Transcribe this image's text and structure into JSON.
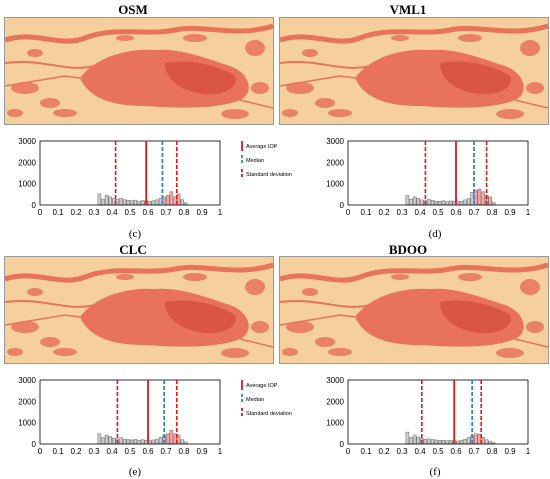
{
  "panels": [
    {
      "title": "OSM"
    },
    {
      "title": "VML1"
    },
    {
      "title": "CLC"
    },
    {
      "title": "BDOO"
    }
  ],
  "legend": {
    "average": "Average IOP",
    "median": "Median",
    "std": "Standard deviation"
  },
  "colors": {
    "land": "#f5cf9c",
    "urban": "#e8735a",
    "urban_dark": "#d4493a",
    "average_line": "#e4161b",
    "median_line": "#2e86c8",
    "std_line": "#e4161b",
    "bar_fill": "#c9c9c9",
    "bar_highlight": "#f2a7a7"
  },
  "chart_data": [
    {
      "type": "bar",
      "caption": "(c)",
      "x_ticks": [
        "0",
        "0.1",
        "0.2",
        "0.3",
        "0.4",
        "0.5",
        "0.6",
        "0.7",
        "0.8",
        "0.9",
        "1"
      ],
      "y_ticks": [
        "0",
        "1000",
        "2000",
        "3000"
      ],
      "ylim": [
        0,
        3000
      ],
      "xlim": [
        0,
        1
      ],
      "average": 0.59,
      "median": 0.68,
      "std_low": 0.42,
      "std_high": 0.76,
      "bins": [
        [
          0.33,
          520
        ],
        [
          0.35,
          280
        ],
        [
          0.37,
          450
        ],
        [
          0.39,
          380
        ],
        [
          0.41,
          300
        ],
        [
          0.43,
          260
        ],
        [
          0.45,
          320
        ],
        [
          0.47,
          250
        ],
        [
          0.49,
          220
        ],
        [
          0.51,
          200
        ],
        [
          0.53,
          230
        ],
        [
          0.55,
          180
        ],
        [
          0.57,
          210
        ],
        [
          0.59,
          190
        ],
        [
          0.61,
          170
        ],
        [
          0.63,
          200
        ],
        [
          0.65,
          240
        ],
        [
          0.67,
          320
        ],
        [
          0.69,
          380
        ],
        [
          0.71,
          450
        ],
        [
          0.73,
          620
        ],
        [
          0.75,
          380
        ],
        [
          0.77,
          520
        ],
        [
          0.79,
          250
        ],
        [
          0.81,
          110
        ]
      ]
    },
    {
      "type": "bar",
      "caption": "(d)",
      "x_ticks": [
        "0",
        "0.1",
        "0.2",
        "0.3",
        "0.4",
        "0.5",
        "0.6",
        "0.7",
        "0.8",
        "0.9",
        "1"
      ],
      "y_ticks": [
        "0",
        "1000",
        "2000",
        "3000"
      ],
      "ylim": [
        0,
        3000
      ],
      "xlim": [
        0,
        1
      ],
      "average": 0.6,
      "median": 0.7,
      "std_low": 0.43,
      "std_high": 0.77,
      "bins": [
        [
          0.33,
          450
        ],
        [
          0.35,
          280
        ],
        [
          0.37,
          380
        ],
        [
          0.39,
          320
        ],
        [
          0.41,
          240
        ],
        [
          0.43,
          200
        ],
        [
          0.45,
          260
        ],
        [
          0.47,
          220
        ],
        [
          0.49,
          180
        ],
        [
          0.51,
          170
        ],
        [
          0.53,
          200
        ],
        [
          0.55,
          160
        ],
        [
          0.57,
          190
        ],
        [
          0.59,
          170
        ],
        [
          0.61,
          160
        ],
        [
          0.63,
          180
        ],
        [
          0.65,
          240
        ],
        [
          0.67,
          300
        ],
        [
          0.69,
          600
        ],
        [
          0.71,
          700
        ],
        [
          0.73,
          750
        ],
        [
          0.75,
          620
        ],
        [
          0.77,
          450
        ],
        [
          0.79,
          380
        ],
        [
          0.81,
          120
        ]
      ]
    },
    {
      "type": "bar",
      "caption": "(e)",
      "x_ticks": [
        "0",
        "0.1",
        "0.2",
        "0.3",
        "0.4",
        "0.5",
        "0.6",
        "0.7",
        "0.8",
        "0.9",
        "1"
      ],
      "y_ticks": [
        "0",
        "1000",
        "2000",
        "3000"
      ],
      "ylim": [
        0,
        3000
      ],
      "xlim": [
        0,
        1
      ],
      "average": 0.6,
      "median": 0.69,
      "std_low": 0.43,
      "std_high": 0.76,
      "bins": [
        [
          0.33,
          480
        ],
        [
          0.35,
          300
        ],
        [
          0.37,
          420
        ],
        [
          0.39,
          350
        ],
        [
          0.41,
          280
        ],
        [
          0.43,
          240
        ],
        [
          0.45,
          300
        ],
        [
          0.47,
          230
        ],
        [
          0.49,
          210
        ],
        [
          0.51,
          190
        ],
        [
          0.53,
          220
        ],
        [
          0.55,
          170
        ],
        [
          0.57,
          200
        ],
        [
          0.59,
          180
        ],
        [
          0.61,
          160
        ],
        [
          0.63,
          190
        ],
        [
          0.65,
          230
        ],
        [
          0.67,
          310
        ],
        [
          0.69,
          400
        ],
        [
          0.71,
          480
        ],
        [
          0.73,
          650
        ],
        [
          0.75,
          480
        ],
        [
          0.77,
          420
        ],
        [
          0.79,
          200
        ],
        [
          0.81,
          100
        ]
      ]
    },
    {
      "type": "bar",
      "caption": "(f)",
      "x_ticks": [
        "0",
        "0.1",
        "0.2",
        "0.3",
        "0.4",
        "0.5",
        "0.6",
        "0.7",
        "0.8",
        "0.9",
        "1"
      ],
      "y_ticks": [
        "0",
        "1000",
        "2000",
        "3000"
      ],
      "ylim": [
        0,
        3000
      ],
      "xlim": [
        0,
        1
      ],
      "average": 0.59,
      "median": 0.69,
      "std_low": 0.41,
      "std_high": 0.74,
      "bins": [
        [
          0.33,
          560
        ],
        [
          0.35,
          320
        ],
        [
          0.37,
          420
        ],
        [
          0.39,
          330
        ],
        [
          0.41,
          260
        ],
        [
          0.43,
          220
        ],
        [
          0.45,
          240
        ],
        [
          0.47,
          210
        ],
        [
          0.49,
          190
        ],
        [
          0.51,
          170
        ],
        [
          0.53,
          180
        ],
        [
          0.55,
          160
        ],
        [
          0.57,
          170
        ],
        [
          0.59,
          150
        ],
        [
          0.61,
          140
        ],
        [
          0.63,
          170
        ],
        [
          0.65,
          220
        ],
        [
          0.67,
          300
        ],
        [
          0.69,
          380
        ],
        [
          0.71,
          480
        ],
        [
          0.73,
          460
        ],
        [
          0.75,
          320
        ],
        [
          0.77,
          200
        ],
        [
          0.79,
          120
        ],
        [
          0.81,
          60
        ]
      ]
    }
  ]
}
